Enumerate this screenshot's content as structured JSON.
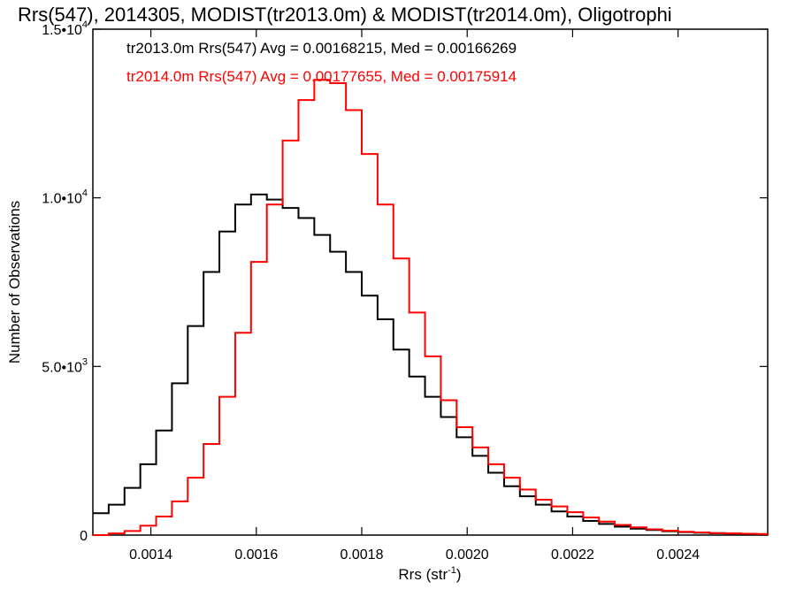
{
  "chart_data": {
    "type": "line",
    "title": "Rrs(547), 2014305, MODIST(tr2013.0m) & MODIST(tr2014.0m), Oligotrophi",
    "xlabel": {
      "base": "Rrs (str",
      "sup": "-1",
      "tail": ")"
    },
    "ylabel": "Number of Observations",
    "xlim": [
      0.00129,
      0.00257
    ],
    "ylim": [
      0,
      15000
    ],
    "x_ticks": [
      {
        "value": 0.0014,
        "label": "0.0014"
      },
      {
        "value": 0.0016,
        "label": "0.0016"
      },
      {
        "value": 0.0018,
        "label": "0.0018"
      },
      {
        "value": 0.002,
        "label": "0.0020"
      },
      {
        "value": 0.0022,
        "label": "0.0022"
      },
      {
        "value": 0.0024,
        "label": "0.0024"
      }
    ],
    "y_ticks": [
      {
        "value": 0,
        "label": "0",
        "sup": ""
      },
      {
        "value": 5000,
        "label": "5.0•10",
        "sup": "3"
      },
      {
        "value": 10000,
        "label": "1.0•10",
        "sup": "4"
      },
      {
        "value": 15000,
        "label": "1.5•10",
        "sup": "4"
      }
    ],
    "series": [
      {
        "legend": "tr2013.0m Rrs(547) Avg = 0.00168215, Med = 0.00166269",
        "color": "#000000",
        "x": [
          0.00129,
          0.00132,
          0.00135,
          0.00138,
          0.00141,
          0.00144,
          0.00147,
          0.0015,
          0.00153,
          0.00156,
          0.00159,
          0.00162,
          0.00165,
          0.00168,
          0.00171,
          0.00174,
          0.00177,
          0.0018,
          0.00183,
          0.00186,
          0.00189,
          0.00192,
          0.00195,
          0.00198,
          0.00201,
          0.00204,
          0.00207,
          0.0021,
          0.00213,
          0.00216,
          0.00219,
          0.00222,
          0.00225,
          0.00228,
          0.00231,
          0.00234,
          0.00237,
          0.0024,
          0.00243,
          0.00246,
          0.00249,
          0.00252,
          0.00255,
          0.00257
        ],
        "y": [
          650,
          900,
          1400,
          2100,
          3100,
          4500,
          6200,
          7800,
          9000,
          9800,
          10100,
          9950,
          9700,
          9400,
          8900,
          8400,
          7800,
          7100,
          6400,
          5500,
          4700,
          4100,
          3500,
          2900,
          2350,
          1850,
          1450,
          1150,
          900,
          700,
          550,
          420,
          330,
          250,
          190,
          150,
          115,
          90,
          70,
          55,
          45,
          35,
          30,
          25
        ]
      },
      {
        "legend": "tr2014.0m Rrs(547) Avg = 0.00177655, Med = 0.00175914",
        "color": "#ff0000",
        "x": [
          0.00129,
          0.00132,
          0.00135,
          0.00138,
          0.00141,
          0.00144,
          0.00147,
          0.0015,
          0.00153,
          0.00156,
          0.00159,
          0.00162,
          0.00165,
          0.00168,
          0.00171,
          0.00174,
          0.00177,
          0.0018,
          0.00183,
          0.00186,
          0.00189,
          0.00192,
          0.00195,
          0.00198,
          0.00201,
          0.00204,
          0.00207,
          0.0021,
          0.00213,
          0.00216,
          0.00219,
          0.00222,
          0.00225,
          0.00228,
          0.00231,
          0.00234,
          0.00237,
          0.0024,
          0.00243,
          0.00246,
          0.00249,
          0.00252,
          0.00255,
          0.00257
        ],
        "y": [
          0,
          50,
          120,
          280,
          550,
          1000,
          1700,
          2700,
          4100,
          6000,
          8100,
          9800,
          11700,
          12900,
          13500,
          13400,
          12600,
          11300,
          9800,
          8200,
          6600,
          5300,
          4000,
          3200,
          2600,
          2100,
          1700,
          1350,
          1050,
          850,
          680,
          520,
          400,
          300,
          230,
          170,
          130,
          100,
          80,
          60,
          50,
          40,
          30,
          25
        ]
      }
    ],
    "legend_placement": "top-left",
    "grid": false
  }
}
